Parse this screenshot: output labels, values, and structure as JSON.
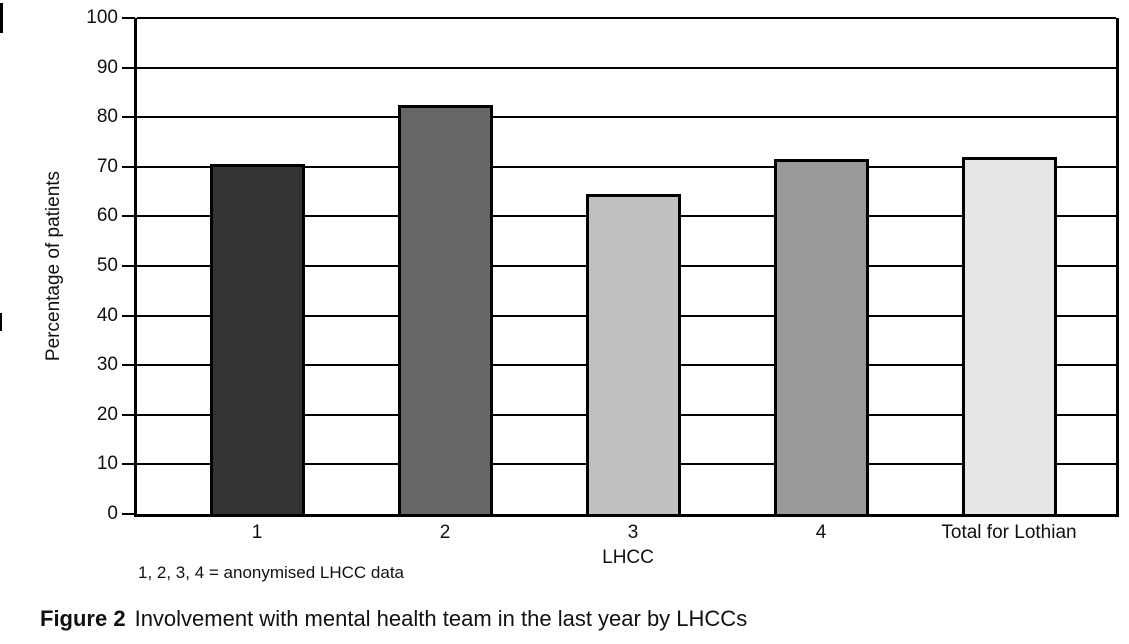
{
  "figure": {
    "caption_label": "Figure 2",
    "caption_text": "Involvement with mental health team in the last year by LHCCs",
    "footnote": "1, 2, 3, 4 = anonymised LHCC data"
  },
  "chart_data": {
    "type": "bar",
    "categories": [
      "1",
      "2",
      "3",
      "4",
      "Total for Lothian"
    ],
    "values": [
      70.5,
      82.5,
      64.5,
      71.5,
      72
    ],
    "bar_colors": [
      "#333333",
      "#666666",
      "#c0c0c0",
      "#999999",
      "#e6e6e6"
    ],
    "bar_border_color": "#000000",
    "title": "",
    "xlabel": "LHCC",
    "ylabel": "Percentage of patients",
    "ylim": [
      0,
      100
    ],
    "ytick_interval": 10,
    "ytick_labels": [
      "0",
      "10",
      "20",
      "30",
      "40",
      "50",
      "60",
      "70",
      "80",
      "90",
      "100"
    ],
    "grid": "horizontal",
    "legend": "none"
  }
}
